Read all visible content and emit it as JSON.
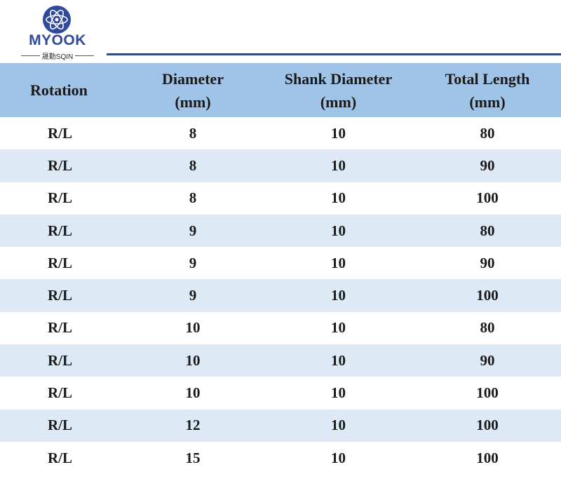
{
  "logo": {
    "brand": "MYOOK",
    "subtitle": "晟勤SQIN",
    "icon": "atom-globe-icon",
    "color": "#2f4a9c"
  },
  "table": {
    "headers": {
      "rotation": "Rotation",
      "diameter_line1": "Diameter",
      "diameter_line2": "(mm)",
      "shank_line1": "Shank Diameter",
      "shank_line2": "(mm)",
      "length_line1": "Total Length",
      "length_line2": "(mm)"
    },
    "header_bg": "#a0c4e8",
    "stripe_bg": "#dde9f5",
    "rows": [
      [
        "R/L",
        "8",
        "10",
        "80"
      ],
      [
        "R/L",
        "8",
        "10",
        "90"
      ],
      [
        "R/L",
        "8",
        "10",
        "100"
      ],
      [
        "R/L",
        "9",
        "10",
        "80"
      ],
      [
        "R/L",
        "9",
        "10",
        "90"
      ],
      [
        "R/L",
        "9",
        "10",
        "100"
      ],
      [
        "R/L",
        "10",
        "10",
        "80"
      ],
      [
        "R/L",
        "10",
        "10",
        "90"
      ],
      [
        "R/L",
        "10",
        "10",
        "100"
      ],
      [
        "R/L",
        "12",
        "10",
        "100"
      ],
      [
        "R/L",
        "15",
        "10",
        "100"
      ]
    ]
  }
}
